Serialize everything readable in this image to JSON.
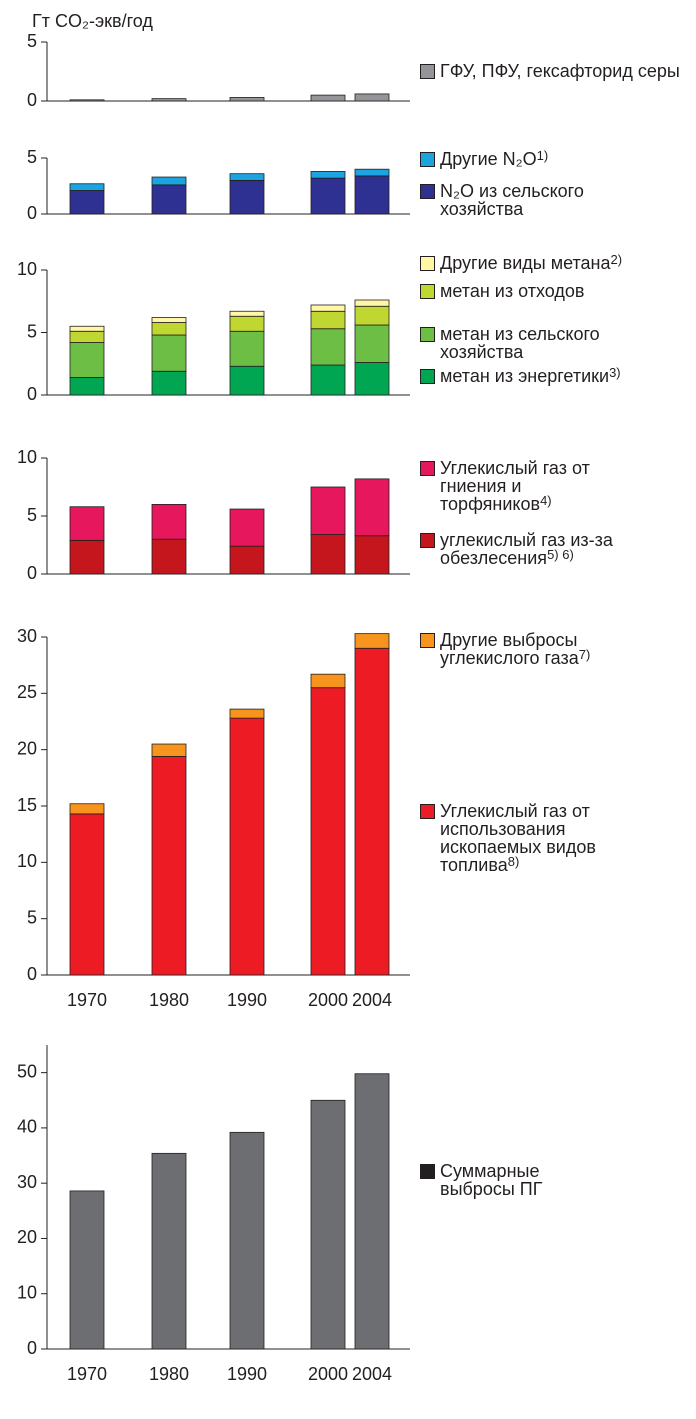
{
  "y_label": "Гт CO₂-экв/год",
  "chart_data": [
    {
      "type": "stacked_bar",
      "ylim": [
        0,
        5
      ],
      "yticks": [
        0,
        5
      ],
      "series": [
        {
          "name": "ГФУ, ПФУ, гексафторид серы",
          "color": "#939598",
          "values": [
            0.1,
            0.2,
            0.3,
            0.5,
            0.6
          ]
        }
      ]
    },
    {
      "type": "stacked_bar",
      "ylim": [
        0,
        5
      ],
      "yticks": [
        0,
        5
      ],
      "series": [
        {
          "name": "N₂O из сельского хозяйства",
          "color": "#2e3192",
          "values": [
            2.1,
            2.6,
            3.0,
            3.2,
            3.4
          ]
        },
        {
          "name": "Другие N₂O",
          "note": "1)",
          "color": "#1ba4df",
          "values": [
            0.6,
            0.7,
            0.6,
            0.6,
            0.6
          ]
        }
      ]
    },
    {
      "type": "stacked_bar",
      "ylim": [
        0,
        10
      ],
      "yticks": [
        0,
        5,
        10
      ],
      "series": [
        {
          "name": "метан из энергетики",
          "note": "3)",
          "color": "#00a651",
          "values": [
            1.4,
            1.9,
            2.3,
            2.4,
            2.6
          ]
        },
        {
          "name": "метан из сельского хозяйства",
          "color": "#6dbe45",
          "values": [
            2.8,
            2.9,
            2.8,
            2.9,
            3.0
          ]
        },
        {
          "name": "метан из отходов",
          "color": "#bfd730",
          "values": [
            0.9,
            1.0,
            1.2,
            1.4,
            1.5
          ]
        },
        {
          "name": "Другие виды метана",
          "note": "2)",
          "color": "#fff6a6",
          "values": [
            0.4,
            0.4,
            0.4,
            0.5,
            0.5
          ]
        }
      ]
    },
    {
      "type": "stacked_bar",
      "ylim": [
        0,
        10
      ],
      "yticks": [
        0,
        5,
        10
      ],
      "series": [
        {
          "name": "углекислый газ из-за обезлесения",
          "note": "5) 6)",
          "color": "#c4161c",
          "values": [
            2.9,
            3.0,
            2.4,
            3.4,
            3.3
          ]
        },
        {
          "name": "Углекислый газ от гниения и торфяников",
          "note": "4)",
          "color": "#e6175c",
          "values": [
            2.9,
            3.0,
            3.2,
            4.1,
            4.9
          ]
        }
      ]
    },
    {
      "type": "stacked_bar",
      "ylim": [
        0,
        30
      ],
      "yticks": [
        0,
        5,
        10,
        15,
        20,
        25,
        30
      ],
      "categories": [
        "1970",
        "1980",
        "1990",
        "2000",
        "2004"
      ],
      "series": [
        {
          "name": "Углекислый газ от использования ископаемых видов топлива",
          "note": "8)",
          "color": "#ed1c24",
          "values": [
            14.3,
            19.4,
            22.8,
            25.5,
            29.0
          ]
        },
        {
          "name": "Другие выбросы углекислого газа",
          "note": "7)",
          "color": "#f7941d",
          "values": [
            0.9,
            1.1,
            0.8,
            1.2,
            1.3
          ]
        }
      ]
    },
    {
      "type": "stacked_bar",
      "ylim": [
        0,
        55
      ],
      "yticks": [
        0,
        10,
        20,
        30,
        40,
        50
      ],
      "categories": [
        "1970",
        "1980",
        "1990",
        "2000",
        "2004"
      ],
      "series": [
        {
          "name": "Суммарные выбросы ПГ",
          "color": "#6d6e71",
          "legend_color": "#231f20",
          "values": [
            28.6,
            35.4,
            39.2,
            45.0,
            49.8
          ]
        }
      ]
    }
  ]
}
